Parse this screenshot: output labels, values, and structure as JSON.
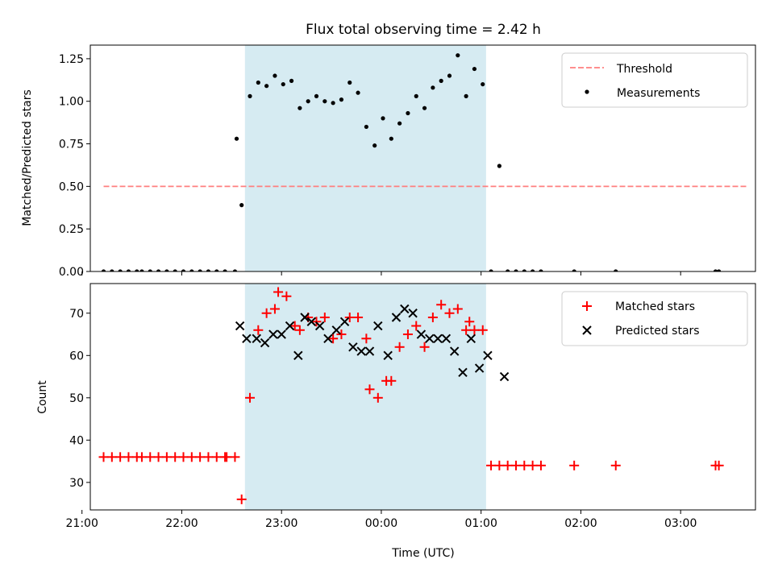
{
  "chart_data": [
    {
      "type": "scatter",
      "title": "Flux total observing time = 2.42 h",
      "ylabel": "Matched/Predicted stars",
      "xlabel": "",
      "x_type": "time",
      "xlim": [
        "21:05",
        "03:45"
      ],
      "ylim": [
        0,
        1.33
      ],
      "x_ticks": [
        "21:00",
        "22:00",
        "23:00",
        "00:00",
        "01:00",
        "02:00",
        "03:00"
      ],
      "y_ticks": [
        "0.00",
        "0.25",
        "0.50",
        "0.75",
        "1.00",
        "1.25"
      ],
      "shaded_interval": {
        "from": "22:38",
        "to": "01:03",
        "color": "#add8e6"
      },
      "legend_position": "top-right",
      "threshold": {
        "name": "Threshold",
        "color": "#ff7f7f",
        "style": "dashed",
        "from": "21:13",
        "to": "03:40",
        "value": 0.5
      },
      "series": [
        {
          "name": "Measurements",
          "color": "#000000",
          "marker": "dot",
          "x": [
            "21:13",
            "21:18",
            "21:23",
            "21:28",
            "21:33",
            "21:36",
            "21:41",
            "21:46",
            "21:51",
            "21:56",
            "22:01",
            "22:06",
            "22:11",
            "22:16",
            "22:21",
            "22:26",
            "22:32",
            "22:36",
            "22:33",
            "22:41",
            "22:46",
            "22:51",
            "22:56",
            "23:01",
            "23:06",
            "23:11",
            "23:16",
            "23:21",
            "23:26",
            "23:31",
            "23:36",
            "23:41",
            "23:46",
            "23:51",
            "23:56",
            "00:01",
            "00:06",
            "00:11",
            "00:16",
            "00:21",
            "00:26",
            "00:31",
            "00:36",
            "00:41",
            "00:46",
            "00:51",
            "00:56",
            "01:01",
            "01:06",
            "01:11",
            "01:16",
            "01:21",
            "01:26",
            "01:31",
            "01:36",
            "01:56",
            "02:21",
            "03:21",
            "03:23"
          ],
          "y": [
            0,
            0,
            0,
            0,
            0,
            0,
            0,
            0,
            0,
            0,
            0,
            0,
            0,
            0,
            0,
            0,
            0,
            0.39,
            0.78,
            1.03,
            1.11,
            1.09,
            1.15,
            1.1,
            1.12,
            0.96,
            1.0,
            1.03,
            1.0,
            0.99,
            1.01,
            1.11,
            1.05,
            0.85,
            0.74,
            0.9,
            0.78,
            0.87,
            0.93,
            1.03,
            0.96,
            1.08,
            1.12,
            1.15,
            1.27,
            1.03,
            1.19,
            1.1,
            0,
            0.62,
            0,
            0,
            0,
            0,
            0,
            0,
            0,
            0,
            0
          ]
        }
      ]
    },
    {
      "type": "scatter",
      "title": "",
      "ylabel": "Count",
      "xlabel": "Time (UTC)",
      "x_type": "time",
      "xlim": [
        "21:05",
        "03:45"
      ],
      "ylim": [
        23.5,
        77
      ],
      "x_ticks": [
        "21:00",
        "22:00",
        "23:00",
        "00:00",
        "01:00",
        "02:00",
        "03:00"
      ],
      "y_ticks": [
        "30",
        "40",
        "50",
        "60",
        "70"
      ],
      "shaded_interval": {
        "from": "22:38",
        "to": "01:03",
        "color": "#add8e6"
      },
      "legend_position": "top-right",
      "series": [
        {
          "name": "Matched stars",
          "color": "#ff0000",
          "marker": "plus",
          "x": [
            "21:13",
            "21:18",
            "21:23",
            "21:28",
            "21:33",
            "21:36",
            "21:41",
            "21:46",
            "21:51",
            "21:56",
            "22:01",
            "22:06",
            "22:11",
            "22:16",
            "22:21",
            "22:26",
            "22:27",
            "22:32",
            "22:36",
            "22:41",
            "22:46",
            "22:51",
            "22:56",
            "22:58",
            "23:03",
            "23:08",
            "23:11",
            "23:16",
            "23:21",
            "23:26",
            "23:31",
            "23:36",
            "23:41",
            "23:46",
            "23:51",
            "23:53",
            "23:58",
            "00:03",
            "00:06",
            "00:11",
            "00:16",
            "00:21",
            "00:26",
            "00:31",
            "00:36",
            "00:41",
            "00:46",
            "00:51",
            "00:53",
            "00:56",
            "01:01",
            "01:06",
            "01:11",
            "01:16",
            "01:21",
            "01:26",
            "01:31",
            "01:36",
            "01:56",
            "02:21",
            "03:21",
            "03:23"
          ],
          "y": [
            36,
            36,
            36,
            36,
            36,
            36,
            36,
            36,
            36,
            36,
            36,
            36,
            36,
            36,
            36,
            36,
            36,
            36,
            26,
            50,
            66,
            70,
            71,
            75,
            74,
            67,
            66,
            69,
            68,
            69,
            64,
            65,
            69,
            69,
            64,
            52,
            50,
            54,
            54,
            62,
            65,
            67,
            62,
            69,
            72,
            70,
            71,
            66,
            68,
            66,
            66,
            34,
            34,
            34,
            34,
            34,
            34,
            34,
            34,
            34,
            34,
            34
          ]
        },
        {
          "name": "Predicted stars",
          "color": "#000000",
          "marker": "x",
          "x": [
            "22:35",
            "22:39",
            "22:45",
            "22:50",
            "22:55",
            "23:00",
            "23:05",
            "23:10",
            "23:14",
            "23:18",
            "23:23",
            "23:28",
            "23:33",
            "23:38",
            "23:43",
            "23:48",
            "23:53",
            "23:58",
            "00:04",
            "00:09",
            "00:14",
            "00:19",
            "00:24",
            "00:29",
            "00:34",
            "00:39",
            "00:44",
            "00:49",
            "00:54",
            "00:59",
            "01:04",
            "01:14"
          ],
          "y": [
            67,
            64,
            64,
            63,
            65,
            65,
            67,
            60,
            69,
            68,
            67,
            64,
            66,
            68,
            62,
            61,
            61,
            67,
            60,
            69,
            71,
            70,
            65,
            64,
            64,
            64,
            61,
            56,
            64,
            57,
            60,
            55
          ]
        }
      ]
    }
  ]
}
